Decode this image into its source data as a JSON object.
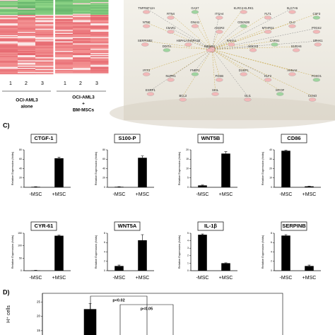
{
  "heatmap": {
    "columns": [
      "1",
      "2",
      "3",
      "1",
      "2",
      "3"
    ],
    "groups": [
      [
        "OCI-AML3",
        "alone"
      ],
      [
        "OCI-AML3",
        "+",
        "BM-MSCs"
      ]
    ]
  },
  "network": {
    "genes": [
      "TNFRSF12A",
      "RTN4",
      "GAS7",
      "ITGA4",
      "KLRC4-KLRK1",
      "FLT1",
      "SLC7A5",
      "CSF3",
      "NT5E",
      "C5AR1",
      "GNAI1",
      "ASGR2",
      "CDKN2B",
      "MTHFD2",
      "CLU",
      "PTGS2",
      "SERPINB2",
      "DDIT4",
      "HSPA1A/HSPA1B",
      "MSMO1",
      "PAHA1",
      "SOCS3",
      "CYR61",
      "S100A6",
      "SPHK1",
      "IFIT3",
      "NUPR1",
      "FNBP1",
      "FOSB",
      "DUSP1",
      "KLF2",
      "AHNAK",
      "FOXO1",
      "ESRP1",
      "BCL3",
      "SKIL",
      "GLI1",
      "MYOF",
      "CCNO"
    ]
  },
  "panel_labels": [
    "C)",
    "D)"
  ],
  "chart_data": [
    {
      "type": "bar",
      "title": "CTGF-1",
      "y_label": "Relative Expression (folds)",
      "categories": [
        "-MSC",
        "+MSC"
      ],
      "values": [
        1,
        62
      ],
      "errors": [
        0.3,
        2
      ],
      "ylim": [
        0,
        80
      ],
      "yticks": [
        0,
        20,
        40,
        60,
        80
      ],
      "color": "#000000"
    },
    {
      "type": "bar",
      "title": "S100-P",
      "y_label": "Relative Expression (folds)",
      "categories": [
        "-MSC",
        "+MSC"
      ],
      "values": [
        1,
        63
      ],
      "errors": [
        0.3,
        4
      ],
      "ylim": [
        0,
        80
      ],
      "yticks": [
        0,
        20,
        40,
        60,
        80
      ],
      "color": "#000000"
    },
    {
      "type": "bar",
      "title": "WNT5B",
      "y_label": "Relative Expression (folds)",
      "categories": [
        "-MSC",
        "+MSC"
      ],
      "values": [
        1,
        18
      ],
      "errors": [
        0.2,
        1
      ],
      "ylim": [
        0,
        20
      ],
      "yticks": [
        0,
        5,
        10,
        15,
        20
      ],
      "color": "#000000"
    },
    {
      "type": "bar",
      "title": "CD86",
      "y_label": "Relative Expression (folds)",
      "categories": [
        "-MSC",
        "+MSC"
      ],
      "values": [
        39,
        1
      ],
      "errors": [
        0.5,
        0.2
      ],
      "ylim": [
        0,
        40
      ],
      "yticks": [
        0,
        10,
        20,
        30,
        40
      ],
      "color": "#000000"
    },
    {
      "type": "bar",
      "title": "CYR-61",
      "y_label": "Relative Expression (folds)",
      "categories": [
        "-MSC",
        "+MSC"
      ],
      "values": [
        1,
        140
      ],
      "errors": [
        0.5,
        2
      ],
      "ylim": [
        0,
        150
      ],
      "yticks": [
        0,
        50,
        100,
        150
      ],
      "color": "#000000"
    },
    {
      "type": "bar",
      "title": "WNT5A",
      "y_label": "Relative Expression (folds)",
      "categories": [
        "-MSC",
        "+MSC"
      ],
      "values": [
        1,
        6.5
      ],
      "errors": [
        0.2,
        1.2
      ],
      "ylim": [
        0,
        8
      ],
      "yticks": [
        0,
        2,
        4,
        6,
        8
      ],
      "color": "#000000"
    },
    {
      "type": "bar",
      "title": "IL-1β",
      "y_label": "Relative Expression (folds)",
      "categories": [
        "-MSC",
        "+MSC"
      ],
      "values": [
        4.8,
        1
      ],
      "errors": [
        0.1,
        0.05
      ],
      "ylim": [
        0,
        5
      ],
      "yticks": [
        0,
        1,
        2,
        3,
        4,
        5
      ],
      "color": "#000000"
    },
    {
      "type": "bar",
      "title": "SERPINB",
      "y_label": "Relative Expression (folds)",
      "categories": [
        "-MSC",
        "+MSC"
      ],
      "values": [
        7.5,
        1
      ],
      "errors": [
        0.2,
        0.2
      ],
      "ylim": [
        0,
        8
      ],
      "yticks": [
        0,
        2,
        4,
        6,
        8
      ],
      "color": "#000000"
    },
    {
      "type": "bar",
      "y_label": "H⁺ cells",
      "categories": [
        null
      ],
      "values": [
        22.5
      ],
      "errors": [
        2
      ],
      "ylim": [
        13.5,
        28
      ],
      "yticks": [
        15,
        20,
        25
      ],
      "annotations": [
        "p<0.02",
        "p<0.05"
      ],
      "color": "#000000"
    }
  ]
}
